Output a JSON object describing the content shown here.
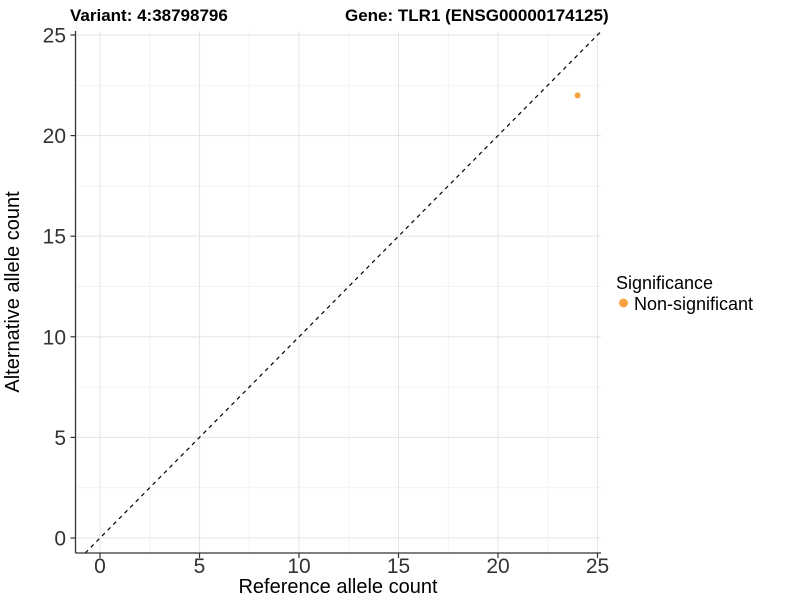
{
  "chart_data": {
    "type": "scatter",
    "titles": {
      "left": "Variant: 4:38798796",
      "right": "Gene: TLR1 (ENSG00000174125)"
    },
    "xlabel": "Reference allele count",
    "ylabel": "Alternative allele count",
    "xlim": [
      0,
      25
    ],
    "ylim": [
      0,
      25
    ],
    "xticks": [
      0,
      5,
      10,
      15,
      20,
      25
    ],
    "yticks": [
      0,
      5,
      10,
      15,
      20,
      25
    ],
    "grid": {
      "major": true,
      "minor": true
    },
    "reference_line": {
      "kind": "identity",
      "label": "y = x",
      "style": "dashed",
      "color": "#000000"
    },
    "series": [
      {
        "name": "Non-significant",
        "color": "#F9A242",
        "points": [
          {
            "x": 24,
            "y": 22
          }
        ]
      }
    ],
    "legend": {
      "title": "Significance",
      "position": "right",
      "items": [
        {
          "label": "Non-significant",
          "color": "#F9A242"
        }
      ]
    }
  },
  "colors": {
    "background": "#FFFFFF",
    "axis_line": "#333333",
    "tick_label": "#333333",
    "grid_major": "#E6E6E6",
    "grid_minor": "#F2F2F2"
  }
}
